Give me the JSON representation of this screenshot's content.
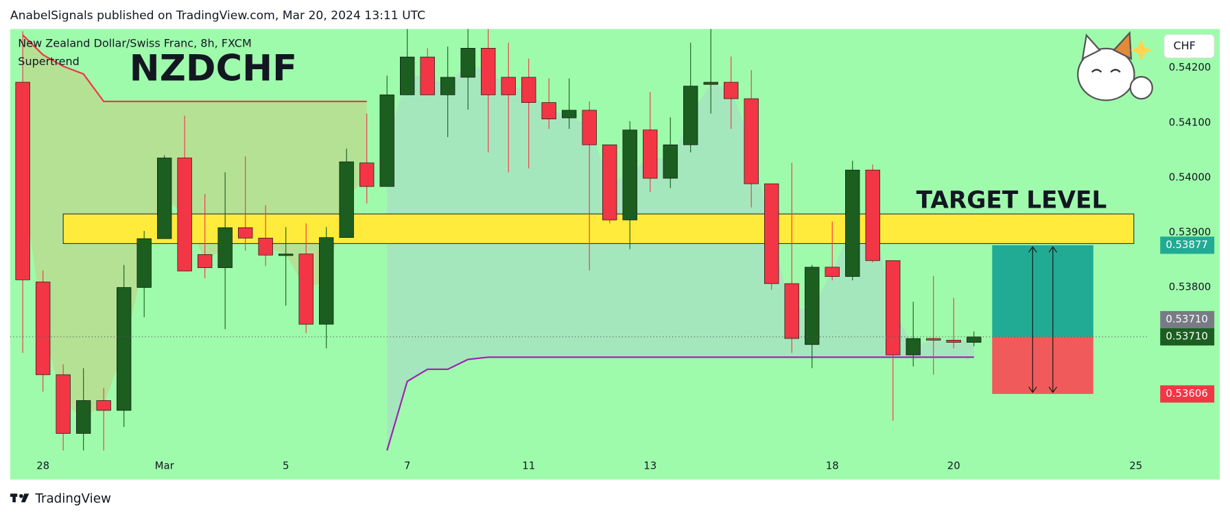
{
  "chart_data": {
    "type": "candlestick",
    "header": "AnabelSignals published on TradingView.com, Mar 20, 2024 13:11 UTC",
    "legend_title": "New Zealand Dollar/Swiss Franc, 8h, FXCM",
    "indicator": "Supertrend",
    "title": "NZDCHF",
    "annotation": "TARGET LEVEL",
    "currency": "CHF",
    "footer": "TradingView",
    "background": "#9ffbac",
    "up_color": "#1b5e20",
    "down_color": "#f23645",
    "open": [
      0.54174,
      0.5381,
      0.53641,
      0.53534,
      0.53594,
      0.53576,
      0.538,
      0.53889,
      0.54036,
      0.5386,
      0.53836,
      0.53909,
      0.5389,
      0.53859,
      0.53861,
      0.53733,
      0.53891,
      0.54027,
      0.53984,
      0.54151,
      0.5422,
      0.54151,
      0.54183,
      0.54236,
      0.54183,
      0.54183,
      0.54137,
      0.54109,
      0.54123,
      0.5406,
      0.53923,
      0.54087,
      0.53999,
      0.5406,
      0.5417,
      0.54174,
      0.54144,
      0.53989,
      0.53807,
      0.53696,
      0.53837,
      0.5382,
      0.54014,
      0.53849,
      0.53677,
      0.53707,
      0.53704,
      0.537
    ],
    "high": [
      0.54267,
      0.53831,
      0.5366,
      0.53653,
      0.53617,
      0.53841,
      0.53903,
      0.54041,
      0.54113,
      0.5397,
      0.5401,
      0.54039,
      0.5395,
      0.5391,
      0.53917,
      0.5391,
      0.54053,
      0.54117,
      0.54186,
      0.54271,
      0.54236,
      0.54239,
      0.54271,
      0.54271,
      0.54246,
      0.54217,
      0.54181,
      0.54181,
      0.54139,
      0.5406,
      0.54103,
      0.54156,
      0.5411,
      0.54246,
      0.54271,
      0.54221,
      0.54196,
      0.53989,
      0.54027,
      0.53841,
      0.5392,
      0.54031,
      0.54024,
      0.53849,
      0.53774,
      0.53821,
      0.53781,
      0.5372
    ],
    "low": [
      0.53681,
      0.5361,
      0.53503,
      0.53503,
      0.53503,
      0.53546,
      0.53746,
      0.53889,
      0.5383,
      0.53817,
      0.53724,
      0.53867,
      0.53839,
      0.53767,
      0.53717,
      0.53689,
      0.53891,
      0.53953,
      0.53984,
      0.54151,
      0.54151,
      0.54074,
      0.54124,
      0.54046,
      0.5401,
      0.54017,
      0.54089,
      0.54089,
      0.53831,
      0.53917,
      0.5387,
      0.53974,
      0.53981,
      0.54046,
      0.54117,
      0.54089,
      0.53946,
      0.53796,
      0.53681,
      0.53653,
      0.53813,
      0.53813,
      0.53846,
      0.53557,
      0.53656,
      0.53641,
      0.53689,
      0.53693
    ],
    "close": [
      0.53814,
      0.53641,
      0.53534,
      0.53594,
      0.53576,
      0.538,
      0.53889,
      0.54036,
      0.5383,
      0.53836,
      0.53909,
      0.5389,
      0.53859,
      0.53861,
      0.53733,
      0.53891,
      0.54029,
      0.53984,
      0.54151,
      0.5422,
      0.54151,
      0.54183,
      0.54236,
      0.54151,
      0.54151,
      0.54137,
      0.54107,
      0.54123,
      0.5406,
      0.53923,
      0.54087,
      0.53999,
      0.5406,
      0.54167,
      0.54174,
      0.54144,
      0.53989,
      0.53807,
      0.53707,
      0.53837,
      0.5382,
      0.54014,
      0.53849,
      0.53677,
      0.53707,
      0.53704,
      0.537,
      0.5371
    ],
    "supertrend_upper": {
      "color": "#f23645",
      "fill": "#b8dc8f",
      "values": [
        0.5426,
        0.54224,
        0.54203,
        0.54189,
        0.54139,
        0.54139,
        0.54139,
        0.54139,
        0.54139,
        0.54139,
        0.54139,
        0.54139,
        0.54139,
        0.54139,
        0.54139,
        0.54139,
        0.54139,
        0.54139,
        null,
        null,
        null,
        null,
        null,
        null,
        null,
        null,
        null,
        null,
        null,
        null,
        null,
        null,
        null,
        null,
        null,
        null,
        null,
        null,
        null,
        null,
        null,
        null,
        null,
        null,
        null,
        null,
        null,
        null
      ]
    },
    "supertrend_lower": {
      "color": "#9c27b0",
      "fill": "#a6e3c0",
      "values": [
        null,
        null,
        null,
        null,
        null,
        null,
        null,
        null,
        null,
        null,
        null,
        null,
        null,
        null,
        null,
        null,
        null,
        null,
        0.53503,
        0.53629,
        0.53651,
        0.53651,
        0.53669,
        0.53673,
        0.53673,
        0.53673,
        0.53673,
        0.53673,
        0.53673,
        0.53673,
        0.53673,
        0.53673,
        0.53673,
        0.53673,
        0.53673,
        0.53673,
        0.53673,
        0.53673,
        0.53673,
        0.53673,
        0.53673,
        0.53673,
        0.53673,
        0.53673,
        0.53673,
        0.53673,
        0.53673,
        0.53673
      ]
    },
    "zone": {
      "low": 0.5388,
      "high": 0.53934,
      "x_start": 2,
      "x_end": 54.9,
      "color": "#ffeb3b"
    },
    "position": {
      "entry": 0.5371,
      "target": 0.53877,
      "stop": 0.53606,
      "x_start": 47.9,
      "x_end": 52.9,
      "profit_color": "#22ab94",
      "loss_color": "#f05a5a"
    },
    "xlim": [
      -0.62,
      55.66
    ],
    "xticks": [
      {
        "value": 1,
        "label": "28"
      },
      {
        "value": 7,
        "label": "Mar"
      },
      {
        "value": 13,
        "label": "5"
      },
      {
        "value": 19,
        "label": "7"
      },
      {
        "value": 25,
        "label": "11"
      },
      {
        "value": 31,
        "label": "13"
      },
      {
        "value": 40,
        "label": "18"
      },
      {
        "value": 46,
        "label": "20"
      },
      {
        "value": 55,
        "label": "25"
      }
    ],
    "ylim": [
      0.5345,
      0.54271
    ],
    "yticks": [
      {
        "value": 0.542,
        "label": "0.54200"
      },
      {
        "value": 0.541,
        "label": "0.54100"
      },
      {
        "value": 0.54,
        "label": "0.54000"
      },
      {
        "value": 0.539,
        "label": "0.53900"
      },
      {
        "value": 0.538,
        "label": "0.53800"
      }
    ],
    "price_labels": [
      {
        "value": 0.53877,
        "label": "0.53877",
        "color": "#22ab94"
      },
      {
        "value": 0.5371,
        "label": "0.53710",
        "color": "#1b5e20"
      },
      {
        "value": 0.5371,
        "label": "0.53710",
        "color": "#787b86"
      },
      {
        "value": 0.53606,
        "label": "0.53606",
        "color": "#f23645"
      }
    ],
    "grid": false
  }
}
